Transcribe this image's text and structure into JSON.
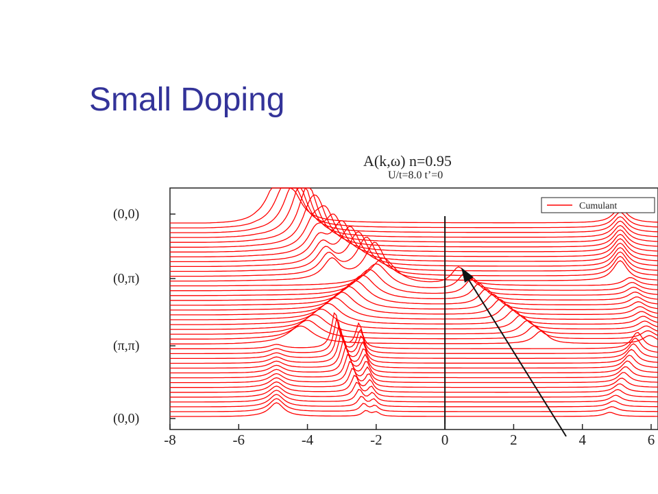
{
  "slide": {
    "title": "Small Doping"
  },
  "chart_data": {
    "type": "line",
    "title": "A(k,ω) n=0.95",
    "subtitle": "U/t=8.0 t’=0",
    "xlabel": "",
    "ylabel": "",
    "xlim": [
      -8,
      6.2
    ],
    "x_ticks": [
      "-8",
      "-6",
      "-4",
      "-2",
      "0",
      "2",
      "4",
      "6"
    ],
    "x_tick_values": [
      -8,
      -6,
      -4,
      -2,
      0,
      2,
      4,
      6
    ],
    "k_labels": [
      "(0,0)",
      "(0,π)",
      "(π,π)",
      "(0,0)"
    ],
    "legend": {
      "label": "Cumulant",
      "position": "top-right"
    },
    "series_color": "#ff0000",
    "vertical_line_x": 0,
    "curve_count": 41,
    "k_path_nodes": [
      0,
      13,
      26,
      40
    ],
    "features": {
      "lower_hubbard": {
        "start_x": -4.9,
        "mid_x": -1.8,
        "end_x": -4.9
      },
      "upper_hubbard": {
        "start_x": 5.1,
        "end_x": 4.8
      },
      "quasiparticle": {
        "start_x": -0.2,
        "mid_x": 0.4,
        "end_x": 3.0
      }
    },
    "arrow": {
      "from": [
        3.9,
        -0.2
      ],
      "to": [
        0.75,
        10.3
      ]
    }
  }
}
